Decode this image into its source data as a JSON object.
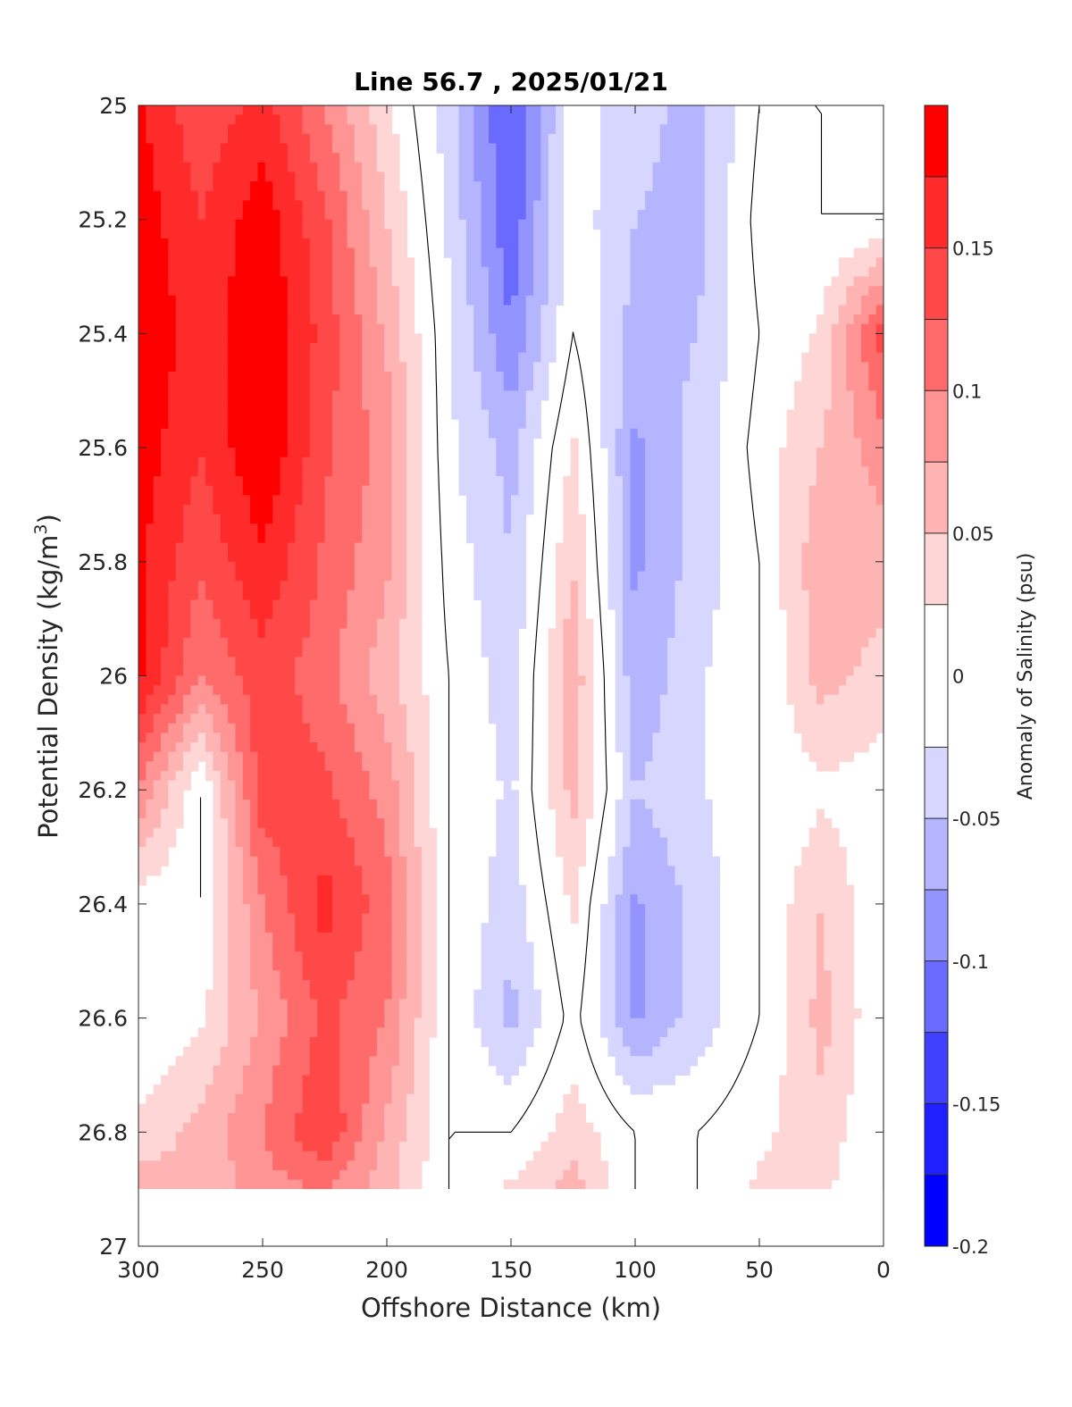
{
  "chart_data": {
    "type": "heatmap",
    "subtype": "filled-contour",
    "title": "Line 56.7 , 2025/01/21",
    "xlabel": "Offshore Distance (km)",
    "ylabel": "Potential Density (kg/m3)",
    "ylabel_parts": {
      "main": "Potential Density (kg/m",
      "sup": "3",
      "close": ")"
    },
    "xlim": [
      300,
      0
    ],
    "ylim": [
      25,
      27
    ],
    "x_reversed": true,
    "y_reversed": true,
    "x_ticks": [
      300,
      250,
      200,
      150,
      100,
      50,
      0
    ],
    "x_tick_labels": [
      "300",
      "250",
      "200",
      "150",
      "100",
      "50",
      "0"
    ],
    "y_ticks": [
      25,
      25.2,
      25.4,
      25.6,
      25.8,
      26,
      26.2,
      26.4,
      26.6,
      26.8,
      27
    ],
    "y_tick_labels": [
      "25",
      "25.2",
      "25.4",
      "25.6",
      "25.8",
      "26",
      "26.2",
      "26.4",
      "26.6",
      "26.8",
      "27"
    ],
    "colorbar": {
      "label": "Anomaly of Salinity (psu)",
      "range": [
        -0.2,
        0.2
      ],
      "ticks": [
        0.15,
        0.1,
        0.05,
        0,
        -0.05,
        -0.1,
        -0.15,
        -0.2
      ],
      "tick_labels": [
        "0.15",
        "0.1",
        "0.05",
        "0",
        "-0.05",
        "-0.1",
        "-0.15",
        "-0.2"
      ],
      "levels": [
        -0.2,
        -0.175,
        -0.15,
        -0.125,
        -0.1,
        -0.075,
        -0.05,
        -0.025,
        0.025,
        0.05,
        0.075,
        0.1,
        0.125,
        0.15,
        0.175,
        0.2
      ],
      "colors": [
        "#0000ff",
        "#2020ff",
        "#4040ff",
        "#6a6aff",
        "#9494ff",
        "#b4b4ff",
        "#d6d6ff",
        "#ffffff",
        "#ffd6d6",
        "#ffb4b4",
        "#ff9494",
        "#ff6a6a",
        "#ff4848",
        "#ff2a2a",
        "#ff0000"
      ]
    },
    "grid": false,
    "data_extent": {
      "x": [
        300,
        0
      ],
      "y": [
        25,
        26.9
      ]
    },
    "x": [
      300,
      275,
      250,
      225,
      200,
      175,
      150,
      125,
      100,
      75,
      50,
      25,
      0
    ],
    "y": [
      25,
      25.2,
      25.4,
      25.6,
      25.8,
      26,
      26.2,
      26.4,
      26.6,
      26.8,
      26.9
    ],
    "z": [
      [
        0.18,
        0.13,
        0.16,
        0.1,
        0.03,
        -0.04,
        -0.13,
        -0.01,
        -0.04,
        -0.06,
        0.0,
        0.0,
        0.0
      ],
      [
        0.19,
        0.15,
        0.19,
        0.13,
        0.05,
        -0.03,
        -0.12,
        -0.01,
        -0.05,
        -0.06,
        0.01,
        0.0,
        0.0
      ],
      [
        0.2,
        0.16,
        0.2,
        0.14,
        0.07,
        -0.02,
        -0.1,
        0.0,
        -0.06,
        -0.05,
        0.0,
        0.03,
        0.14
      ],
      [
        0.19,
        0.15,
        0.2,
        0.13,
        0.09,
        -0.02,
        -0.06,
        0.03,
        -0.08,
        -0.04,
        0.01,
        0.05,
        0.09
      ],
      [
        0.18,
        0.13,
        0.17,
        0.12,
        0.08,
        -0.01,
        -0.05,
        0.05,
        -0.08,
        -0.04,
        0.0,
        0.07,
        0.06
      ],
      [
        0.18,
        0.1,
        0.14,
        0.11,
        0.06,
        0.0,
        -0.04,
        0.07,
        -0.07,
        -0.03,
        0.0,
        0.06,
        0.04
      ],
      [
        0.1,
        0.0,
        0.14,
        0.13,
        0.09,
        0.0,
        -0.03,
        0.06,
        -0.05,
        -0.03,
        0.0,
        0.02,
        0.01
      ],
      [
        0.01,
        0.0,
        0.1,
        0.16,
        0.11,
        0.0,
        -0.04,
        0.03,
        -0.08,
        -0.04,
        0.0,
        0.05,
        0.0
      ],
      [
        0.0,
        0.02,
        0.08,
        0.13,
        0.1,
        0.0,
        -0.06,
        0.01,
        -0.08,
        -0.04,
        0.0,
        0.06,
        0.0
      ],
      [
        0.03,
        0.06,
        0.1,
        0.15,
        0.07,
        0.0,
        0.0,
        0.04,
        0.0,
        0.0,
        0.02,
        0.04,
        0.0
      ],
      [
        0.07,
        0.05,
        0.09,
        0.1,
        0.06,
        0.0,
        0.03,
        0.06,
        0.0,
        0.0,
        0.03,
        0.03,
        0.0
      ]
    ]
  }
}
